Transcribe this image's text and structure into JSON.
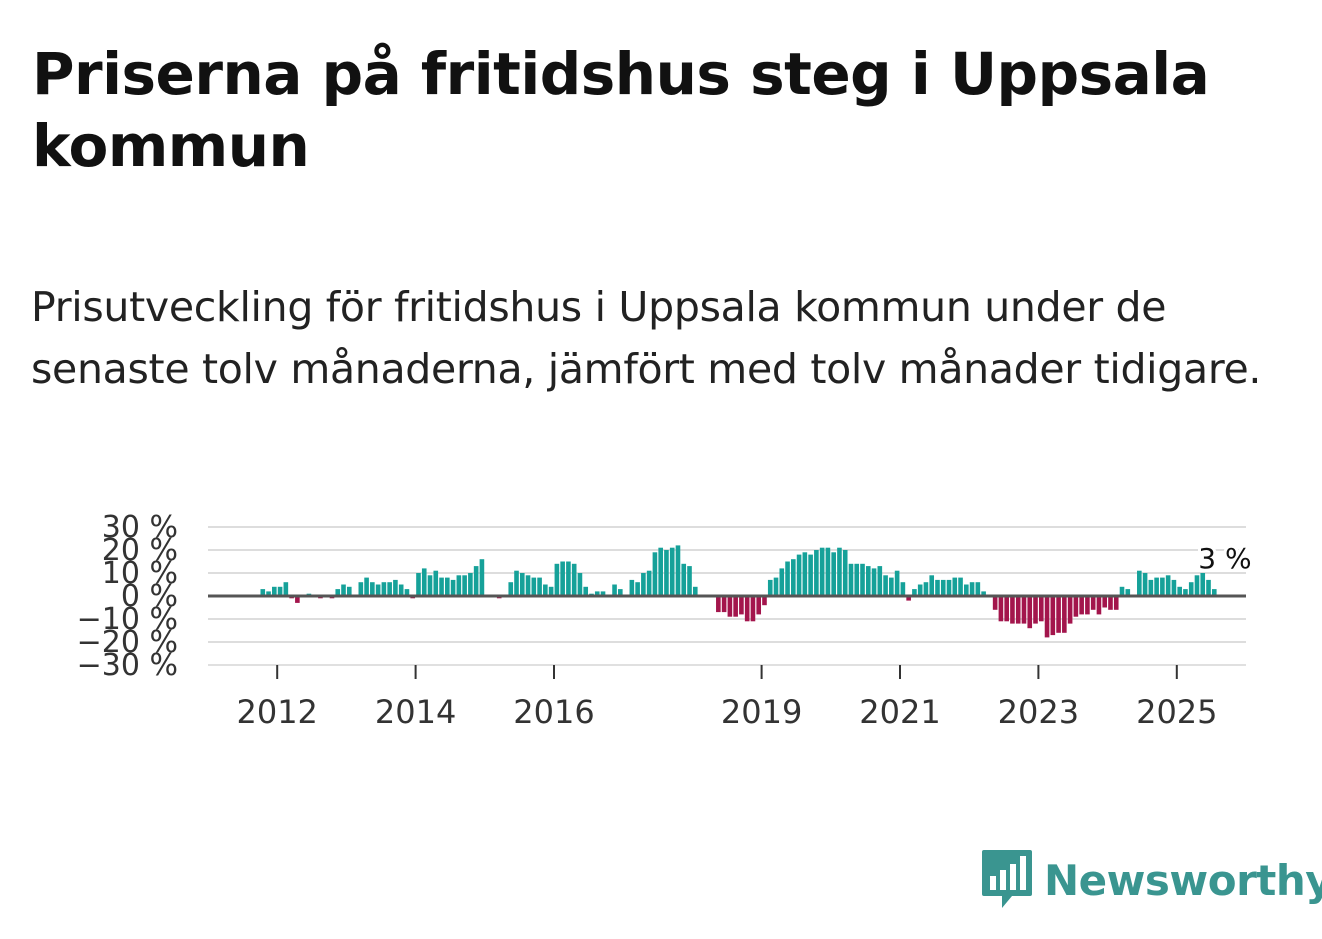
{
  "header": {
    "title": "Priserna på fritidshus steg i Uppsala kommun",
    "subtitle": "Prisutveckling för fritidshus i Uppsala kommun under de senaste tolv månaderna, jämfört med tolv månader tidigare."
  },
  "brand": {
    "name": "Newsworthy",
    "color": "#3a9590",
    "icon": "bar-chart-icon"
  },
  "chart_data": {
    "type": "bar",
    "x_start": "2011-01",
    "x_end": "2026-01",
    "x_ticks": [
      {
        "year": 2012,
        "label": "2012"
      },
      {
        "year": 2014,
        "label": "2014"
      },
      {
        "year": 2016,
        "label": "2016"
      },
      {
        "year": 2019,
        "label": "2019"
      },
      {
        "year": 2021,
        "label": "2021"
      },
      {
        "year": 2023,
        "label": "2023"
      },
      {
        "year": 2025,
        "label": "2025"
      }
    ],
    "y_ticks": [
      {
        "value": 30,
        "label": "30 %"
      },
      {
        "value": 20,
        "label": "20 %"
      },
      {
        "value": 10,
        "label": "10 %"
      },
      {
        "value": 0,
        "label": "0 %"
      },
      {
        "value": -10,
        "label": "−10 %"
      },
      {
        "value": -20,
        "label": "−20 %"
      },
      {
        "value": -30,
        "label": "−30 %"
      }
    ],
    "ylim": [
      -30,
      30
    ],
    "grid": true,
    "colors": {
      "positive": "#16a199",
      "negative": "#a3154c",
      "zero_line": "#555555",
      "grid": "#dddddd"
    },
    "annotation": {
      "date": "2025-09",
      "label": "3 %"
    },
    "series": [
      {
        "start": "2011-10",
        "values": [
          3,
          2,
          4,
          4,
          6,
          -1,
          -3,
          0,
          1,
          0,
          -1,
          0,
          -1,
          3,
          5,
          4,
          0,
          6,
          8,
          6,
          5,
          6,
          6,
          7,
          5,
          3,
          -1,
          10,
          12,
          9,
          11,
          8,
          8,
          7,
          9,
          9,
          10,
          13,
          16,
          0,
          0,
          -1,
          0,
          6,
          11,
          10,
          9,
          8,
          8,
          5,
          4,
          14,
          15,
          15,
          14,
          10,
          4,
          1,
          2,
          2,
          0,
          5,
          3,
          0,
          7,
          6,
          10,
          11,
          19,
          21,
          20,
          21,
          22,
          14,
          13,
          4,
          0,
          0,
          0,
          -7,
          -7,
          -9,
          -9,
          -8,
          -11,
          -11,
          -8,
          -4,
          7,
          8,
          12,
          15,
          16,
          18,
          19,
          18,
          20,
          21,
          21,
          19,
          21,
          20,
          14,
          14,
          14,
          13,
          12,
          13,
          9,
          8,
          11,
          6,
          -2,
          3,
          5,
          6,
          9,
          7,
          7,
          7,
          8,
          8,
          5,
          6,
          6,
          2,
          0,
          -6,
          -11,
          -11,
          -12,
          -12,
          -12,
          -14,
          -12,
          -11,
          -18,
          -17,
          -16,
          -16,
          -12,
          -9,
          -8,
          -8,
          -6,
          -8,
          -5,
          -6,
          -6,
          4,
          3,
          0,
          11,
          10,
          7,
          8,
          8,
          9,
          7,
          4,
          3,
          6,
          9,
          10,
          7,
          3
        ]
      }
    ]
  }
}
